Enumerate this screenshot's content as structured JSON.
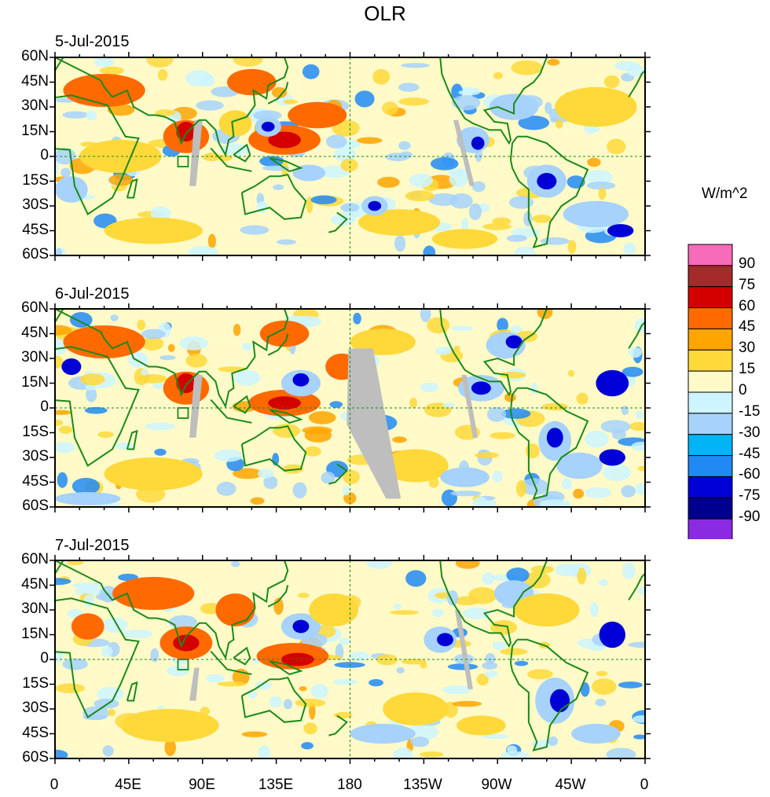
{
  "title": "OLR",
  "panels": [
    {
      "date": "5-Jul-2015"
    },
    {
      "date": "6-Jul-2015"
    },
    {
      "date": "7-Jul-2015"
    }
  ],
  "lat_labels": [
    "60N",
    "45N",
    "30N",
    "15N",
    "0",
    "15S",
    "30S",
    "45S",
    "60S"
  ],
  "lon_labels": [
    "0",
    "45E",
    "90E",
    "135E",
    "180",
    "135W",
    "90W",
    "45W",
    "0"
  ],
  "colorbar": {
    "units": "W/m^2",
    "labels": [
      "90",
      "75",
      "60",
      "45",
      "30",
      "15",
      "0",
      "-15",
      "-30",
      "-45",
      "-60",
      "-75",
      "-90"
    ],
    "colors": [
      "#f76cba",
      "#a52a2a",
      "#d40000",
      "#ff6a00",
      "#ffa500",
      "#ffd83a",
      "#fffac8",
      "#cdf4ff",
      "#a6d2fb",
      "#00b4f5",
      "#2189f4",
      "#0000d6",
      "#00008f",
      "#8a2be2"
    ]
  },
  "map_colors": {
    "coast": "#1a8a1a",
    "missing": "#bebebe",
    "pos": "#ff6a00",
    "pos_strong": "#d40000",
    "light_pos": "#ffd83a",
    "neg": "#a6d2fb",
    "neg_strong": "#0000d6",
    "neg_extreme": "#8a2be2"
  }
}
